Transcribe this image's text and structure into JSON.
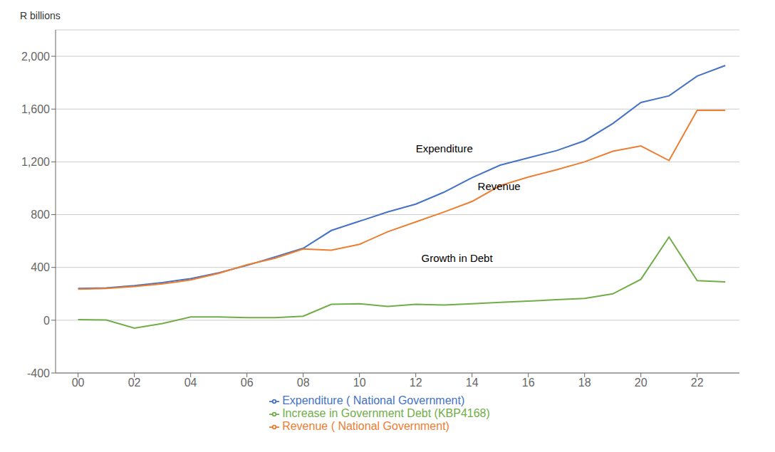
{
  "chart_data": {
    "type": "line",
    "y_label": "R billions",
    "x": [
      2000,
      2001,
      2002,
      2003,
      2004,
      2005,
      2006,
      2007,
      2008,
      2009,
      2010,
      2011,
      2012,
      2013,
      2014,
      2015,
      2016,
      2017,
      2018,
      2019,
      2020,
      2021,
      2022,
      2023
    ],
    "series": [
      {
        "name": "Expenditure ( National Government)",
        "color": "#4472C4",
        "values": [
          240,
          245,
          262,
          285,
          315,
          360,
          415,
          480,
          545,
          680,
          750,
          820,
          880,
          970,
          1080,
          1175,
          1230,
          1285,
          1360,
          1490,
          1650,
          1700,
          1850,
          1930
        ]
      },
      {
        "name": "Revenue ( National Government)",
        "color": "#ED7D31",
        "values": [
          235,
          240,
          255,
          275,
          305,
          355,
          420,
          470,
          540,
          530,
          575,
          670,
          745,
          820,
          900,
          1020,
          1085,
          1140,
          1200,
          1280,
          1320,
          1210,
          1590,
          1590
        ]
      },
      {
        "name": "Increase in Government Debt (KBP4168)",
        "color": "#70AD47",
        "values": [
          5,
          2,
          -60,
          -25,
          25,
          25,
          20,
          20,
          30,
          120,
          125,
          105,
          120,
          115,
          125,
          135,
          145,
          155,
          165,
          200,
          310,
          630,
          300,
          290
        ]
      }
    ],
    "xlim": [
      1999.2,
      2023.5
    ],
    "xticks": [
      {
        "value": 2000,
        "label": "00"
      },
      {
        "value": 2002,
        "label": "02"
      },
      {
        "value": 2004,
        "label": "04"
      },
      {
        "value": 2006,
        "label": "06"
      },
      {
        "value": 2008,
        "label": "08"
      },
      {
        "value": 2010,
        "label": "10"
      },
      {
        "value": 2012,
        "label": "12"
      },
      {
        "value": 2014,
        "label": "14"
      },
      {
        "value": 2016,
        "label": "16"
      },
      {
        "value": 2018,
        "label": "18"
      },
      {
        "value": 2020,
        "label": "20"
      },
      {
        "value": 2022,
        "label": "22"
      }
    ],
    "ylim": [
      -400,
      2200
    ],
    "yticks": [
      -400,
      0,
      400,
      800,
      {
        "value": 1200,
        "label": "1,200"
      },
      {
        "value": 1600,
        "label": "1,600"
      },
      {
        "value": 2000,
        "label": "2,000"
      }
    ],
    "annotations": [
      {
        "text": "Expenditure",
        "x": 2012.0,
        "y": 1270
      },
      {
        "text": "Revenue",
        "x": 2014.2,
        "y": 985
      },
      {
        "text": "Growth in Debt",
        "x": 2012.2,
        "y": 440
      }
    ],
    "grid": "y"
  }
}
